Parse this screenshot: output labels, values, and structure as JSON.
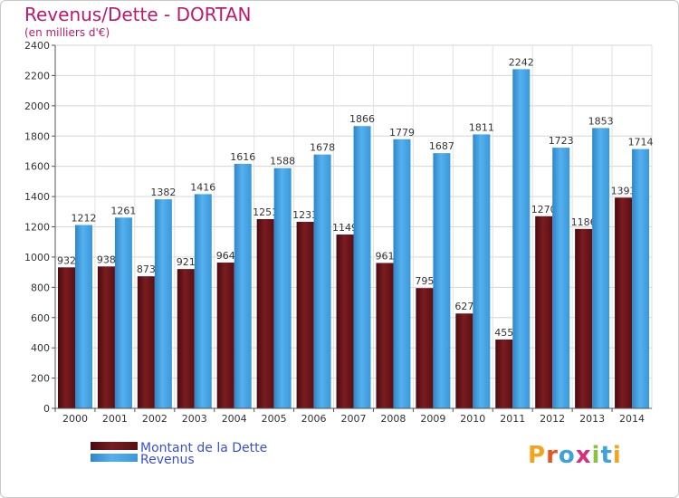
{
  "title": "Revenus/Dette - DORTAN",
  "subtitle": "(en milliers d'€)",
  "logo": {
    "text": "Proxiti",
    "letters": [
      {
        "ch": "P",
        "color": "#f2a41c"
      },
      {
        "ch": "r",
        "color": "#e8541e"
      },
      {
        "ch": "o",
        "color": "#3ea2dc"
      },
      {
        "ch": "x",
        "color": "#d92f7a"
      },
      {
        "ch": "i",
        "color": "#8ac23f"
      },
      {
        "ch": "t",
        "color": "#3ea2dc"
      },
      {
        "ch": "i",
        "color": "#f2a41c"
      }
    ]
  },
  "chart_data": {
    "type": "bar",
    "categories": [
      "2000",
      "2001",
      "2002",
      "2003",
      "2004",
      "2005",
      "2006",
      "2007",
      "2008",
      "2009",
      "2010",
      "2011",
      "2012",
      "2013",
      "2014"
    ],
    "series": [
      {
        "name": "Montant de la Dette",
        "color": "#6b1418",
        "values": [
          932,
          938,
          873,
          921,
          964,
          1251,
          1233,
          1149,
          961,
          795,
          627,
          455,
          1270,
          1186,
          1393
        ],
        "labels": [
          "932",
          "938",
          "873",
          "921",
          "964",
          "1251",
          "1233",
          "1149",
          "961",
          "795",
          "627",
          "455",
          "1270",
          "1186",
          "1393"
        ]
      },
      {
        "name": "Revenus",
        "color": "#3d9ee0",
        "values": [
          1212,
          1261,
          1382,
          1416,
          1616,
          1588,
          1678,
          1866,
          1779,
          1687,
          1811,
          2242,
          1723,
          1853,
          1714
        ],
        "labels": [
          "1212",
          "1261",
          "1382",
          "1416",
          "1616",
          "1588",
          "1678",
          "1866",
          "1779",
          "1687",
          "1811",
          "2242",
          "1723",
          "1853",
          "1714"
        ]
      }
    ],
    "ylim": [
      0,
      2400
    ],
    "yticks": [
      0,
      200,
      400,
      600,
      800,
      1000,
      1200,
      1400,
      1600,
      1800,
      2000,
      2200,
      2400
    ],
    "grid": true,
    "legend_position": "bottom-left"
  }
}
